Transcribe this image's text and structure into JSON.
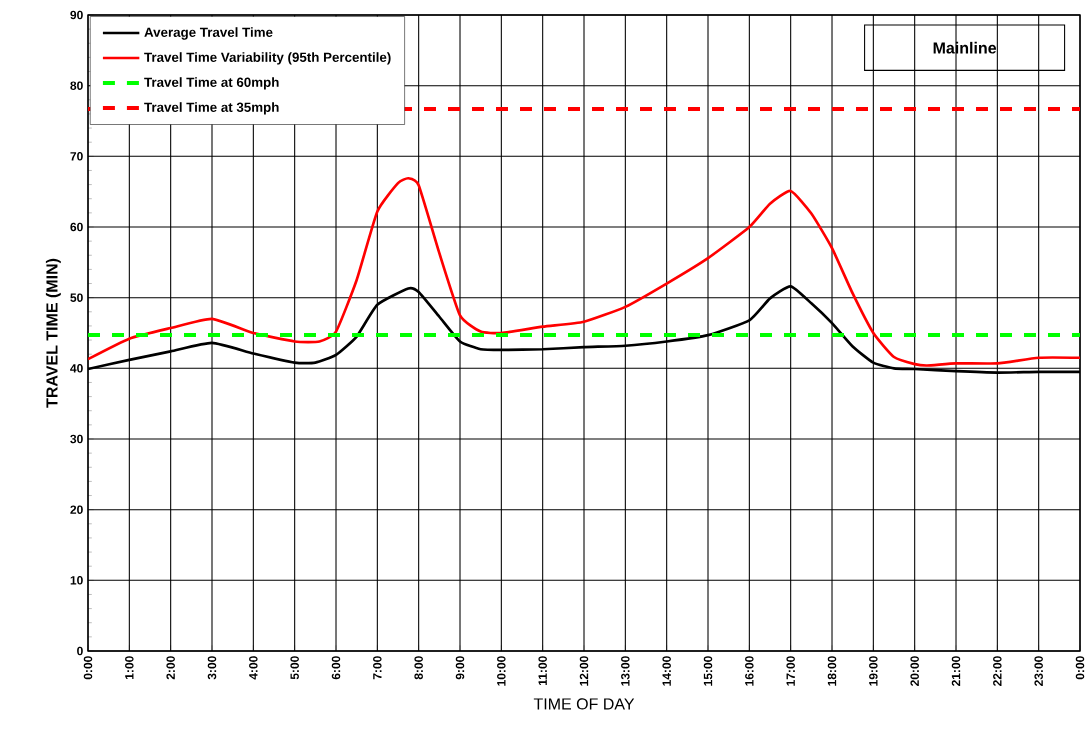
{
  "chart_data": {
    "type": "line",
    "xlabel": "TIME OF DAY",
    "ylabel": "TRAVEL TIME (MIN)",
    "annotations": [
      "Mainline"
    ],
    "xlim": [
      0,
      24
    ],
    "ylim": [
      0,
      90
    ],
    "xticks": [
      {
        "value": 0,
        "label": "0:00"
      },
      {
        "value": 1,
        "label": "1:00"
      },
      {
        "value": 2,
        "label": "2:00"
      },
      {
        "value": 3,
        "label": "3:00"
      },
      {
        "value": 4,
        "label": "4:00"
      },
      {
        "value": 5,
        "label": "5:00"
      },
      {
        "value": 6,
        "label": "6:00"
      },
      {
        "value": 7,
        "label": "7:00"
      },
      {
        "value": 8,
        "label": "8:00"
      },
      {
        "value": 9,
        "label": "9:00"
      },
      {
        "value": 10,
        "label": "10:00"
      },
      {
        "value": 11,
        "label": "11:00"
      },
      {
        "value": 12,
        "label": "12:00"
      },
      {
        "value": 13,
        "label": "13:00"
      },
      {
        "value": 14,
        "label": "14:00"
      },
      {
        "value": 15,
        "label": "15:00"
      },
      {
        "value": 16,
        "label": "16:00"
      },
      {
        "value": 17,
        "label": "17:00"
      },
      {
        "value": 18,
        "label": "18:00"
      },
      {
        "value": 19,
        "label": "19:00"
      },
      {
        "value": 20,
        "label": "20:00"
      },
      {
        "value": 21,
        "label": "21:00"
      },
      {
        "value": 22,
        "label": "22:00"
      },
      {
        "value": 23,
        "label": "23:00"
      },
      {
        "value": 24,
        "label": "0:00"
      }
    ],
    "yticks": [
      0,
      10,
      20,
      30,
      40,
      50,
      60,
      70,
      80,
      90
    ],
    "grid": true,
    "legend": "top left",
    "marker": "none",
    "series": [
      {
        "name": "Average Travel Time",
        "color": "#000000",
        "line_style": "solid",
        "x": [
          0,
          1,
          2,
          3,
          4,
          5,
          5.5,
          6,
          6.5,
          7,
          7.75,
          8,
          8.5,
          9,
          9.5,
          10,
          11,
          12,
          13,
          14,
          15,
          16,
          16.5,
          17,
          17.5,
          18,
          18.5,
          19,
          19.5,
          20,
          21,
          22,
          23,
          24
        ],
        "values": [
          39.9,
          41.2,
          42.4,
          43.6,
          42.1,
          40.8,
          40.8,
          41.9,
          44.5,
          49.0,
          51.3,
          50.8,
          47.3,
          43.8,
          42.7,
          42.6,
          42.7,
          43.0,
          43.2,
          43.8,
          44.7,
          46.8,
          49.9,
          51.6,
          49.2,
          46.4,
          43.1,
          40.8,
          40.0,
          39.9,
          39.6,
          39.4,
          39.5,
          39.5
        ]
      },
      {
        "name": "Travel Time Variability (95th Percentile)",
        "color": "#ff0000",
        "line_style": "solid",
        "x": [
          0,
          1,
          2,
          3,
          4,
          5,
          5.6,
          6,
          6.5,
          7,
          7.5,
          7.75,
          8,
          8.5,
          9,
          9.5,
          10,
          11,
          12,
          13,
          14,
          15,
          16,
          16.5,
          17,
          17.5,
          18,
          18.5,
          19,
          19.5,
          20,
          20.3,
          21,
          22,
          23,
          24
        ],
        "values": [
          41.3,
          44.2,
          45.7,
          47.0,
          45.0,
          43.8,
          43.8,
          45.2,
          52.5,
          62.2,
          66.2,
          66.9,
          65.9,
          56.3,
          47.5,
          45.2,
          45.0,
          45.9,
          46.6,
          48.7,
          52.0,
          55.6,
          60.0,
          63.3,
          65.1,
          61.9,
          57.0,
          50.6,
          45.0,
          41.6,
          40.6,
          40.4,
          40.7,
          40.7,
          41.5,
          41.5
        ]
      },
      {
        "name": "Travel Time at 60mph",
        "color": "#00ff00",
        "line_style": "dashed",
        "x": [
          0,
          24
        ],
        "values": [
          44.7,
          44.7
        ]
      },
      {
        "name": "Travel Time at 35mph",
        "color": "#ff0000",
        "line_style": "dashed",
        "x": [
          0,
          24
        ],
        "values": [
          76.7,
          76.7
        ]
      }
    ]
  }
}
